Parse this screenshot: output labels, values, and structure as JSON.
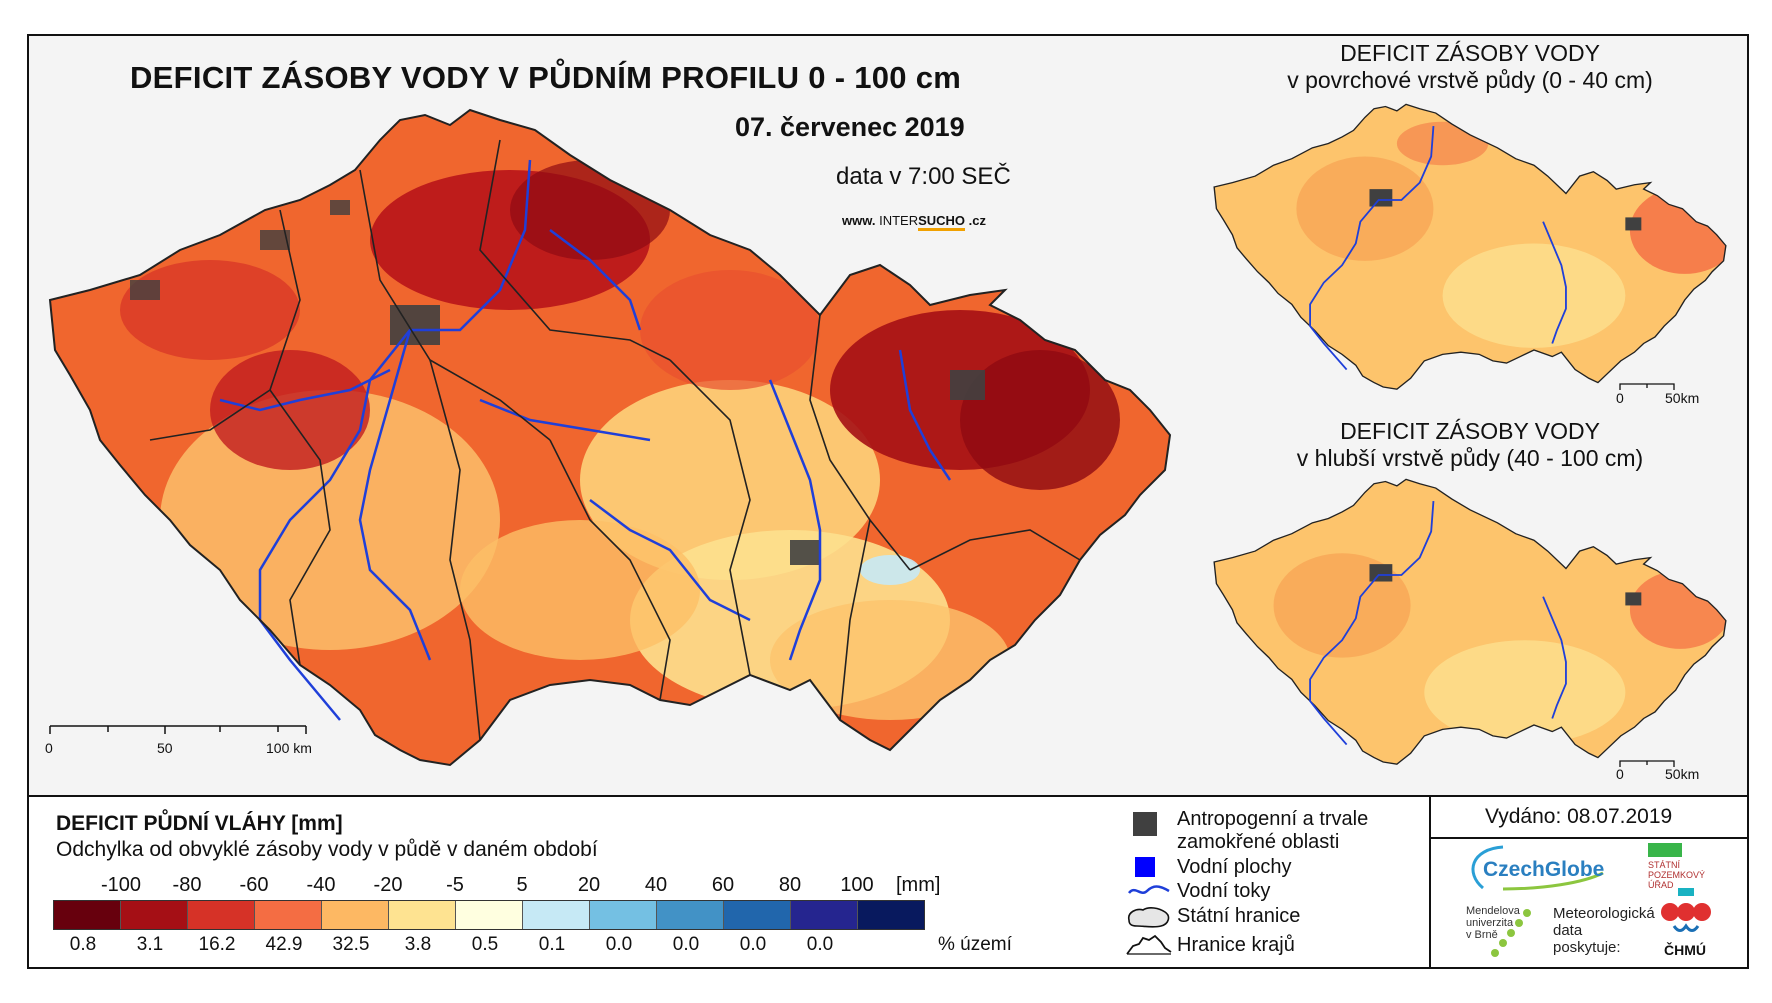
{
  "header": {
    "title": "DEFICIT ZÁSOBY VODY V PŮDNÍM PROFILU 0 - 100 cm",
    "date": "07. červenec 2019",
    "data_time": "data v 7:00 SEČ",
    "website_prefix": "www.",
    "website_brand_a": "INTER",
    "website_brand_b": "SUCHO",
    "website_suffix": ".cz"
  },
  "main_map": {
    "scale_labels": [
      "0",
      "50",
      "100 km"
    ]
  },
  "inset_top": {
    "title": "DEFICIT ZÁSOBY VODY",
    "subtitle": "v povrchové vrstvě půdy (0 - 40 cm)",
    "scale_labels": [
      "0",
      "50km"
    ]
  },
  "inset_bottom": {
    "title": "DEFICIT ZÁSOBY VODY",
    "subtitle": "v hlubší vrstvě půdy (40 - 100 cm)",
    "scale_labels": [
      "0",
      "50km"
    ]
  },
  "legend": {
    "title": "DEFICIT PŮDNÍ VLÁHY [mm]",
    "subtitle": "Odchylka od obvyklé zásoby vody v půdě v daném období",
    "ticks": [
      "-100",
      "-80",
      "-60",
      "-40",
      "-20",
      "-5",
      "5",
      "20",
      "40",
      "60",
      "80",
      "100"
    ],
    "unit": "[mm]",
    "colors": [
      "#67000d",
      "#a50f15",
      "#d63227",
      "#f46d43",
      "#fdb863",
      "#fee391",
      "#ffffe0",
      "#c6e9f5",
      "#74c0e3",
      "#4292c6",
      "#2166ac",
      "#25258f",
      "#08195e"
    ],
    "percentages": [
      "0.8",
      "3.1",
      "16.2",
      "42.9",
      "32.5",
      "3.8",
      "0.5",
      "0.1",
      "0.0",
      "0.0",
      "0.0",
      "0.0"
    ],
    "percent_label": "% území"
  },
  "symbols": {
    "items": [
      {
        "label": "Antropogenní a trvale",
        "label2": "zamokřené oblasti",
        "icon": "grey-square-icon",
        "color": "#404040"
      },
      {
        "label": "Vodní plochy",
        "icon": "blue-square-icon",
        "color": "#0000ff"
      },
      {
        "label": "Vodní toky",
        "icon": "river-line-icon",
        "color": "#1f3fd9"
      },
      {
        "label": "Státní hranice",
        "icon": "state-border-icon",
        "color": "#111111"
      },
      {
        "label": "Hranice krajů",
        "icon": "region-border-icon",
        "color": "#111111"
      }
    ]
  },
  "issued": {
    "text": "Vydáno: 08.07.2019"
  },
  "logos": {
    "czechglobe": "CzechGlobe",
    "spu_line1": "STÁTNÍ",
    "spu_line2": "POZEMKOVÝ",
    "spu_line3": "ÚŘAD",
    "mendel_line1": "Mendelova",
    "mendel_line2": "univerzita",
    "mendel_line3": "v Brně",
    "meteo_line1": "Meteorologická",
    "meteo_line2": "data",
    "meteo_line3": "poskytuje:",
    "chmu": "ČHMÚ"
  }
}
